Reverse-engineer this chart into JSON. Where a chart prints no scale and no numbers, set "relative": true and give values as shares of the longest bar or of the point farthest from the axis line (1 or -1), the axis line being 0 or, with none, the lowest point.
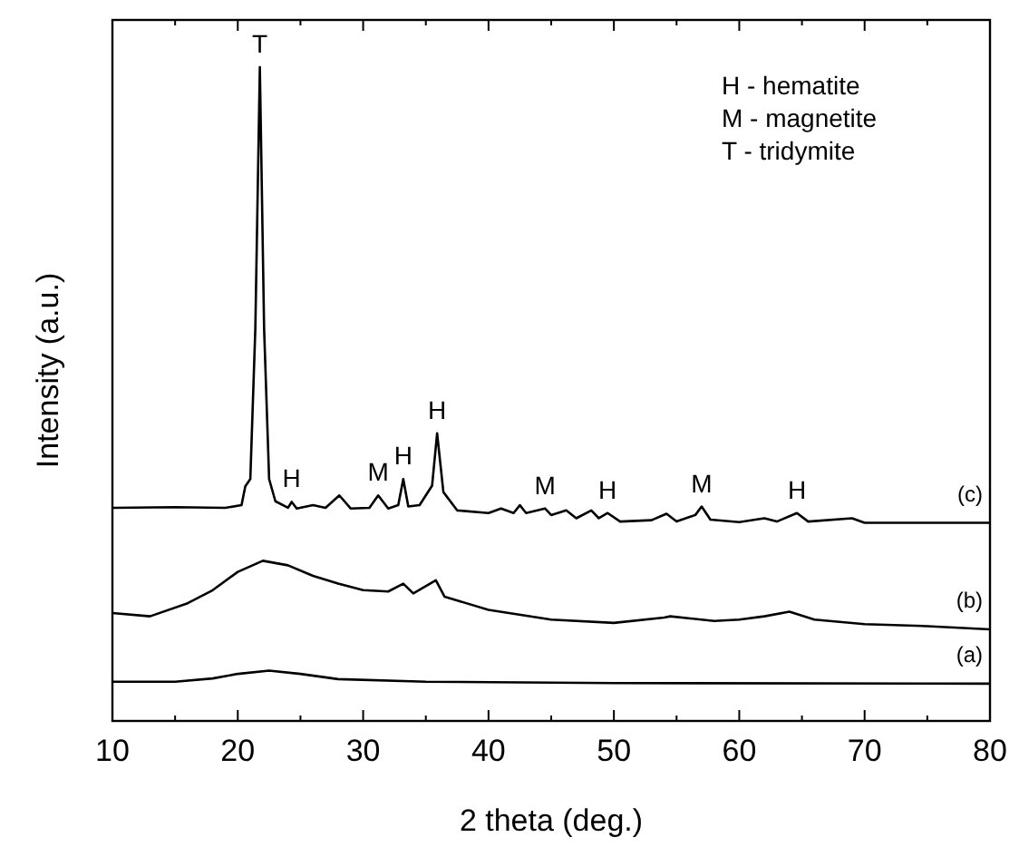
{
  "chart_data": {
    "type": "line",
    "relative": true,
    "xlabel": "2 theta (deg.)",
    "ylabel": "Intensity (a.u.)",
    "xlim": [
      10,
      80
    ],
    "xticks": [
      10,
      {
        "value": 15,
        "label": null
      },
      20,
      {
        "value": 25,
        "label": null
      },
      30,
      {
        "value": 35,
        "label": null
      },
      40,
      {
        "value": 45,
        "label": null
      },
      50,
      {
        "value": 55,
        "label": null
      },
      60,
      {
        "value": 65,
        "label": null
      },
      70,
      {
        "value": 75,
        "label": null
      },
      80
    ],
    "line_style": "solid",
    "grid": false,
    "series": [
      {
        "name": "(a)",
        "color": "#000000",
        "x": [
          10,
          15,
          18,
          20,
          22.5,
          25,
          28,
          35,
          50,
          80
        ],
        "values": [
          0.06,
          0.06,
          0.065,
          0.072,
          0.077,
          0.072,
          0.064,
          0.06,
          0.058,
          0.057
        ]
      },
      {
        "name": "(b)",
        "color": "#000000",
        "x": [
          10,
          13,
          16,
          18,
          20,
          22,
          24,
          26,
          28,
          30,
          32,
          33.2,
          34,
          35.8,
          36.5,
          40,
          45,
          50,
          54,
          54.5,
          58,
          60,
          62,
          64,
          66,
          70,
          75,
          80
        ],
        "values": [
          0.165,
          0.16,
          0.18,
          0.2,
          0.228,
          0.245,
          0.238,
          0.222,
          0.21,
          0.2,
          0.198,
          0.21,
          0.195,
          0.215,
          0.19,
          0.17,
          0.155,
          0.15,
          0.158,
          0.16,
          0.153,
          0.155,
          0.16,
          0.167,
          0.155,
          0.148,
          0.145,
          0.14
        ]
      },
      {
        "name": "(c)",
        "color": "#000000",
        "x": [
          10,
          15,
          19,
          20.3,
          20.6,
          21,
          21.4,
          21.76,
          22.1,
          22.5,
          23,
          24,
          24.3,
          24.7,
          26,
          27,
          28.1,
          29,
          30.5,
          31.2,
          32,
          32.8,
          33.2,
          33.6,
          34.5,
          35.5,
          35.9,
          36.4,
          37.5,
          40,
          41,
          42,
          42.5,
          43,
          44.5,
          45,
          46.2,
          47,
          48.2,
          48.8,
          49.5,
          50.5,
          53,
          54.2,
          55,
          56.5,
          57,
          57.7,
          60,
          62,
          63,
          64.6,
          65.5,
          69,
          70,
          75,
          80
        ],
        "values": [
          0.326,
          0.327,
          0.326,
          0.33,
          0.359,
          0.37,
          0.6,
          1,
          0.6,
          0.37,
          0.336,
          0.326,
          0.335,
          0.325,
          0.33,
          0.326,
          0.345,
          0.325,
          0.326,
          0.345,
          0.325,
          0.33,
          0.37,
          0.328,
          0.33,
          0.36,
          0.44,
          0.35,
          0.322,
          0.318,
          0.325,
          0.318,
          0.33,
          0.318,
          0.325,
          0.315,
          0.322,
          0.31,
          0.322,
          0.31,
          0.318,
          0.305,
          0.307,
          0.317,
          0.305,
          0.315,
          0.328,
          0.308,
          0.304,
          0.31,
          0.305,
          0.318,
          0.305,
          0.31,
          0.303,
          0.303,
          0.303
        ]
      }
    ],
    "annotations": [
      "H - hematite",
      "M - magnetite",
      "T - tridymite",
      {
        "text": "T",
        "x": 21.76,
        "y": 1
      },
      {
        "text": "H",
        "x": 24.3,
        "y": 0.335
      },
      {
        "text": "M",
        "x": 31.2,
        "y": 0.345
      },
      {
        "text": "H",
        "x": 33.2,
        "y": 0.37
      },
      {
        "text": "H",
        "x": 35.9,
        "y": 0.44
      },
      {
        "text": "M",
        "x": 44.5,
        "y": 0.325
      },
      {
        "text": "H",
        "x": 49.5,
        "y": 0.318
      },
      {
        "text": "M",
        "x": 57,
        "y": 0.328
      },
      {
        "text": "H",
        "x": 64.6,
        "y": 0.318
      }
    ]
  }
}
